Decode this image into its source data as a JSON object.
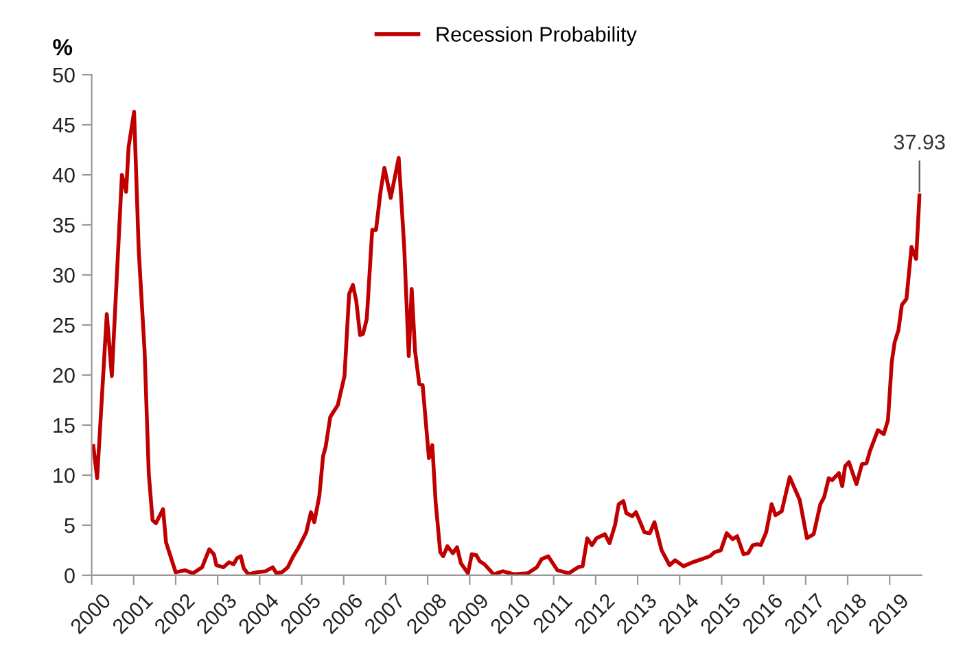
{
  "chart_data": {
    "type": "line",
    "ylabel": "%",
    "legend": "top",
    "grid": false,
    "marker": "none",
    "line_style": "solid",
    "xlim": [
      2000,
      2019.76
    ],
    "xticks": [
      2000,
      2001,
      2002,
      2003,
      2004,
      2005,
      2006,
      2007,
      2008,
      2009,
      2010,
      2011,
      2012,
      2013,
      2014,
      2015,
      2016,
      2017,
      2018,
      2019
    ],
    "ylim": [
      0,
      50
    ],
    "yticks": [
      0,
      5,
      10,
      15,
      20,
      25,
      30,
      35,
      40,
      45,
      50
    ],
    "series": [
      {
        "name": "Recession Probability",
        "color": "#c00000",
        "x": [
          2000.04,
          2000.13,
          2000.36,
          2000.48,
          2000.72,
          2000.82,
          2000.88,
          2001.01,
          2001.12,
          2001.26,
          2001.36,
          2001.45,
          2001.53,
          2001.7,
          2001.77,
          2002.0,
          2002.22,
          2002.41,
          2002.63,
          2002.8,
          2002.91,
          2002.97,
          2003.14,
          2003.27,
          2003.38,
          2003.46,
          2003.55,
          2003.62,
          2003.73,
          2003.93,
          2004.14,
          2004.31,
          2004.4,
          2004.53,
          2004.67,
          2004.8,
          2004.93,
          2005.11,
          2005.22,
          2005.3,
          2005.42,
          2005.51,
          2005.57,
          2005.68,
          2005.86,
          2006.02,
          2006.13,
          2006.22,
          2006.3,
          2006.39,
          2006.46,
          2006.55,
          2006.68,
          2006.77,
          2006.88,
          2006.97,
          2007.12,
          2007.31,
          2007.44,
          2007.55,
          2007.62,
          2007.7,
          2007.8,
          2007.88,
          2008.03,
          2008.11,
          2008.19,
          2008.3,
          2008.37,
          2008.47,
          2008.6,
          2008.7,
          2008.79,
          2008.96,
          2009.05,
          2009.16,
          2009.24,
          2009.35,
          2009.57,
          2009.79,
          2010.05,
          2010.38,
          2010.6,
          2010.71,
          2010.87,
          2011.09,
          2011.36,
          2011.58,
          2011.69,
          2011.8,
          2011.91,
          2012.02,
          2012.22,
          2012.33,
          2012.46,
          2012.55,
          2012.66,
          2012.73,
          2012.87,
          2012.96,
          2013.16,
          2013.29,
          2013.4,
          2013.57,
          2013.76,
          2013.89,
          2014.09,
          2014.31,
          2014.52,
          2014.72,
          2014.83,
          2014.98,
          2015.12,
          2015.26,
          2015.37,
          2015.52,
          2015.63,
          2015.74,
          2015.85,
          2015.93,
          2016.06,
          2016.19,
          2016.28,
          2016.43,
          2016.62,
          2016.86,
          2017.03,
          2017.19,
          2017.35,
          2017.44,
          2017.55,
          2017.63,
          2017.79,
          2017.87,
          2017.94,
          2018.03,
          2018.21,
          2018.34,
          2018.45,
          2018.53,
          2018.72,
          2018.86,
          2018.96,
          2019.05,
          2019.12,
          2019.21,
          2019.29,
          2019.4,
          2019.52,
          2019.63,
          2019.71
        ],
        "values": [
          12.9,
          9.7,
          26.1,
          19.9,
          40.0,
          38.3,
          42.8,
          46.3,
          32.5,
          22.4,
          10.1,
          5.5,
          5.2,
          6.6,
          3.3,
          0.3,
          0.5,
          0.2,
          0.8,
          2.6,
          2.1,
          1.0,
          0.8,
          1.3,
          1.1,
          1.7,
          1.9,
          0.7,
          0.1,
          0.3,
          0.4,
          0.8,
          0.2,
          0.3,
          0.8,
          1.9,
          2.8,
          4.3,
          6.3,
          5.3,
          7.9,
          11.9,
          12.8,
          15.8,
          17.0,
          19.9,
          28.1,
          29.0,
          27.4,
          24.0,
          24.1,
          25.6,
          34.5,
          34.5,
          38.4,
          40.7,
          37.7,
          41.7,
          32.9,
          21.9,
          28.6,
          22.4,
          19.1,
          19.0,
          11.7,
          13.0,
          7.3,
          2.3,
          1.9,
          2.9,
          2.2,
          2.8,
          1.2,
          0.2,
          2.1,
          2.0,
          1.4,
          1.1,
          0.1,
          0.4,
          0.1,
          0.2,
          0.8,
          1.6,
          1.9,
          0.5,
          0.2,
          0.8,
          0.9,
          3.7,
          3.0,
          3.7,
          4.1,
          3.2,
          5.0,
          7.1,
          7.4,
          6.2,
          5.9,
          6.3,
          4.3,
          4.2,
          5.3,
          2.5,
          1.0,
          1.5,
          0.9,
          1.3,
          1.6,
          1.9,
          2.3,
          2.5,
          4.2,
          3.6,
          3.9,
          2.1,
          2.2,
          3.0,
          3.1,
          3.0,
          4.3,
          7.1,
          6.0,
          6.4,
          9.8,
          7.5,
          3.7,
          4.1,
          7.1,
          7.8,
          9.7,
          9.5,
          10.2,
          8.9,
          10.9,
          11.3,
          9.1,
          11.1,
          11.2,
          12.4,
          14.5,
          14.1,
          15.5,
          21.3,
          23.3,
          24.5,
          27.0,
          27.6,
          32.8,
          31.6,
          37.93
        ]
      }
    ],
    "annotations": [
      {
        "text": "37.93",
        "x": 2019.71,
        "y": 37.93
      }
    ]
  }
}
